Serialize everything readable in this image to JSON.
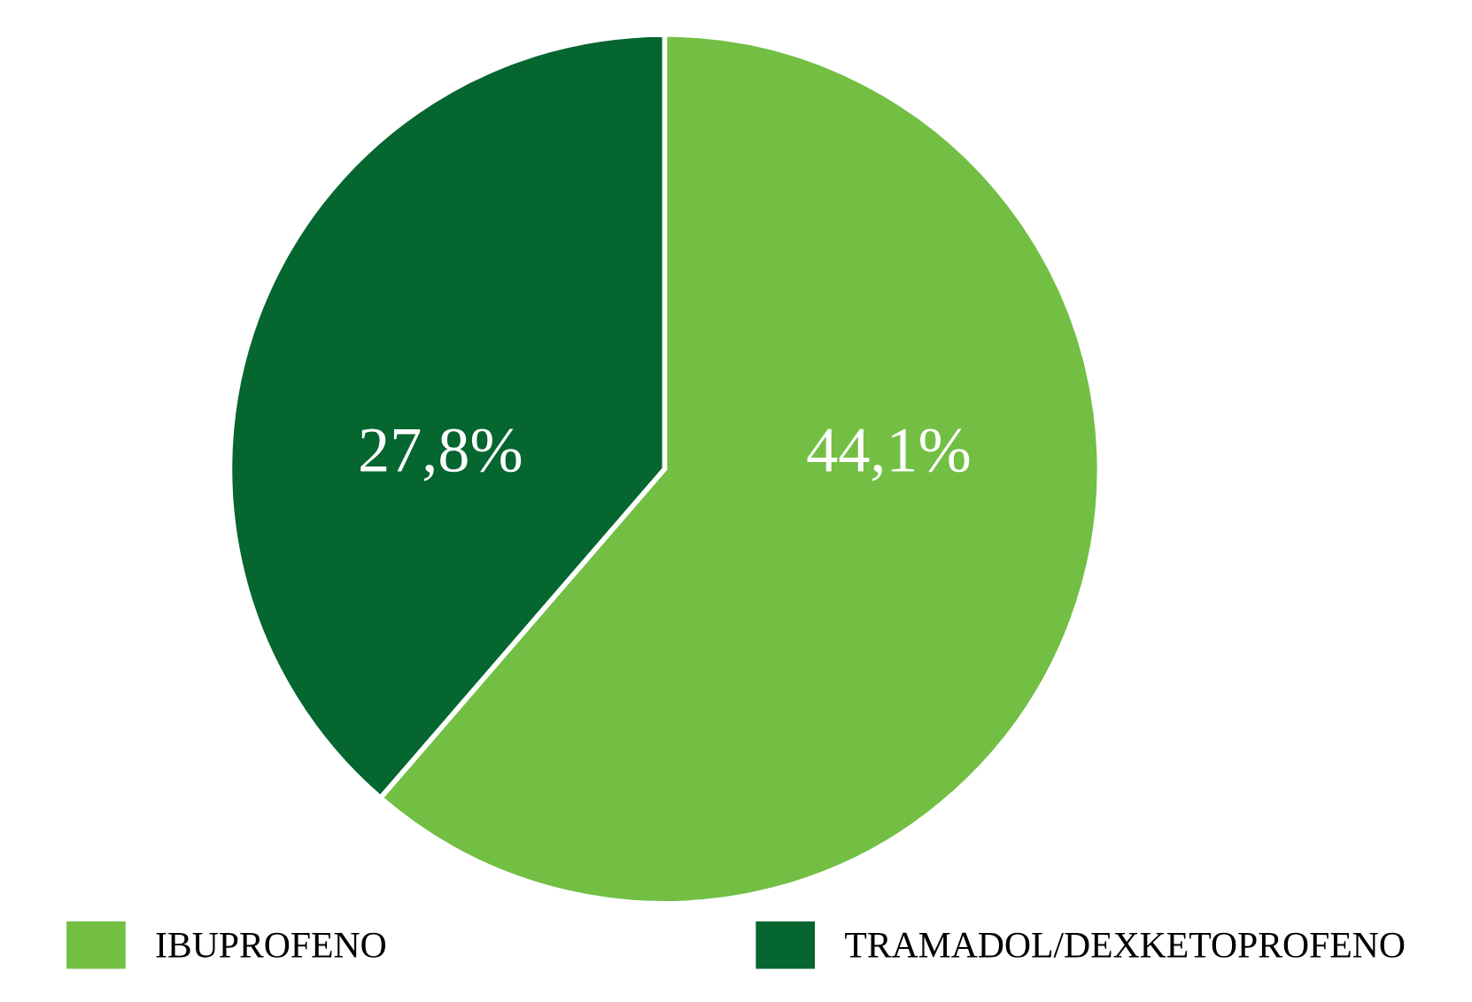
{
  "chart_data": {
    "type": "pie",
    "categories": [
      "IBUPROFENO",
      "TRAMADOL/DEXKETOPROFENO"
    ],
    "values": [
      44.1,
      27.8
    ],
    "colors": [
      "#72bf44",
      "#05662f"
    ],
    "value_labels": [
      "44,1%",
      "27,8%"
    ],
    "legend": "bottom"
  }
}
